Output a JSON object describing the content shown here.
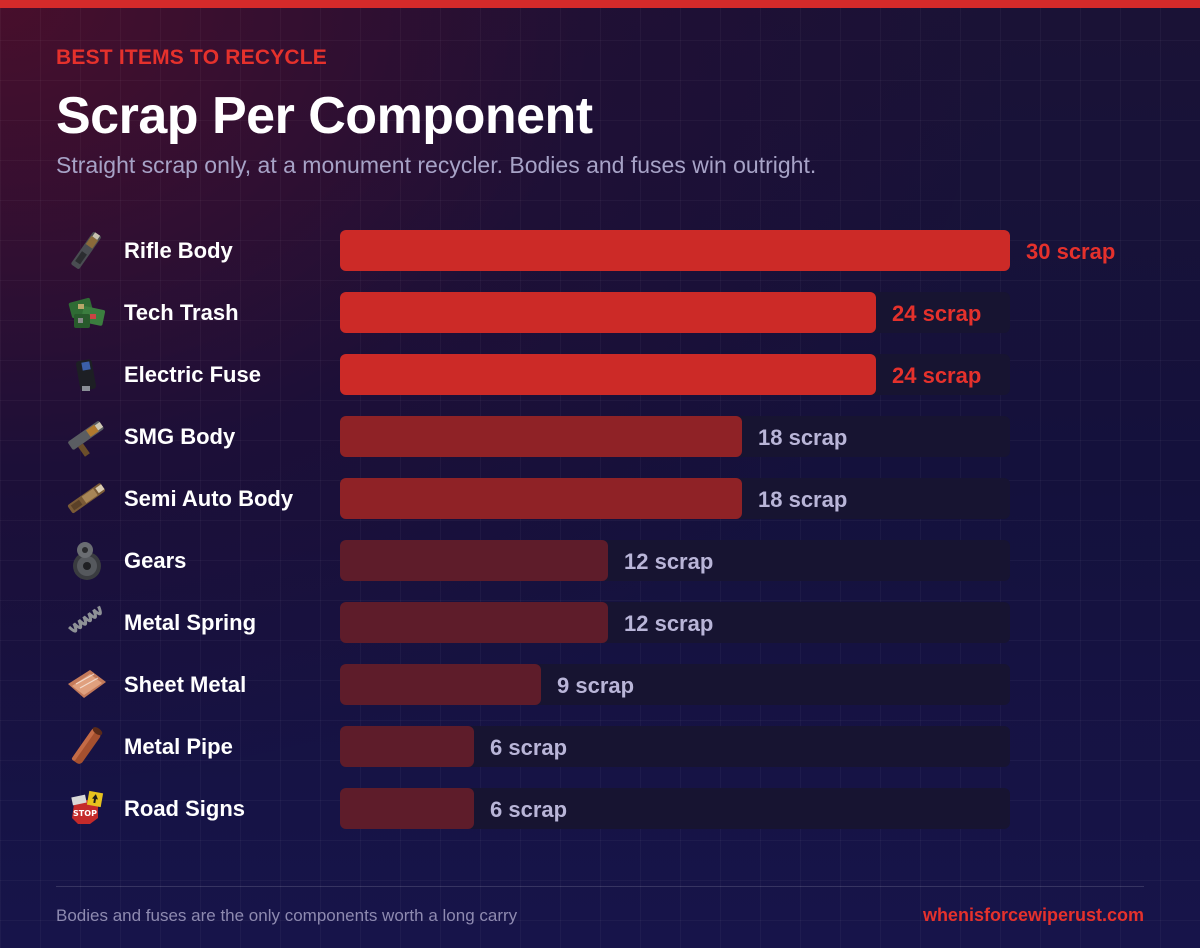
{
  "header": {
    "eyebrow": "BEST ITEMS TO RECYCLE",
    "title": "Scrap Per Component",
    "subtitle": "Straight scrap only, at a monument recycler. Bodies and fuses win outright."
  },
  "footer": {
    "note": "Bodies and fuses are the only components worth a long carry",
    "site": "whenisforcewiperust.com"
  },
  "colors": {
    "accent": "#e5312c",
    "bar_top": "#cc2a27",
    "bar_mid": "#8f2226",
    "bar_low": "#5e1c2a",
    "value_top": "#e5312c",
    "value_other": "#b9b5d8"
  },
  "chart_data": {
    "type": "bar",
    "orientation": "horizontal",
    "unit": "scrap",
    "xlim": [
      0,
      30
    ],
    "categories": [
      "Rifle Body",
      "Tech Trash",
      "Electric Fuse",
      "SMG Body",
      "Semi Auto Body",
      "Gears",
      "Metal Spring",
      "Sheet Metal",
      "Metal Pipe",
      "Road Signs"
    ],
    "values": [
      30,
      24,
      24,
      18,
      18,
      12,
      12,
      9,
      6,
      6
    ],
    "value_labels": [
      "30 scrap",
      "24 scrap",
      "24 scrap",
      "18 scrap",
      "18 scrap",
      "12 scrap",
      "12 scrap",
      "9 scrap",
      "6 scrap",
      "6 scrap"
    ],
    "icons": [
      "rifle-body-icon",
      "tech-trash-icon",
      "electric-fuse-icon",
      "smg-body-icon",
      "semi-auto-body-icon",
      "gears-icon",
      "metal-spring-icon",
      "sheet-metal-icon",
      "metal-pipe-icon",
      "road-signs-icon"
    ]
  }
}
